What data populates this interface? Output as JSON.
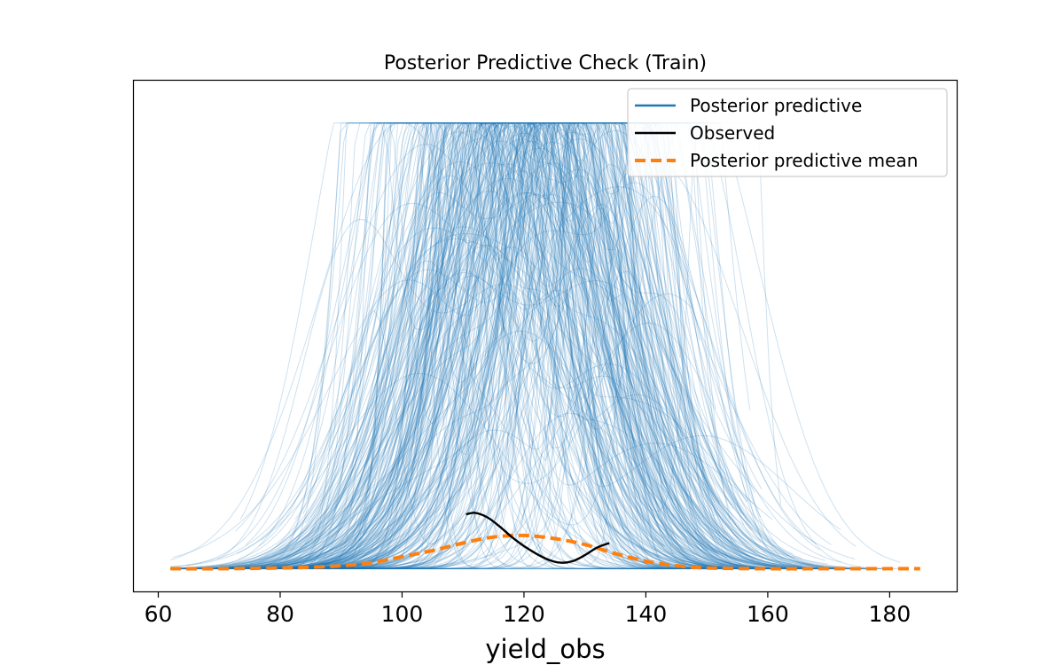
{
  "chart_data": {
    "type": "line",
    "title": "Posterior Predictive Check (Train)",
    "xlabel": "yield_obs",
    "ylabel": "",
    "xlim": [
      56,
      191
    ],
    "ylim": [
      -0.0015,
      0.0323
    ],
    "x_ticks": [
      60,
      80,
      100,
      120,
      140,
      160,
      180
    ],
    "x_tick_labels": [
      "60",
      "80",
      "100",
      "120",
      "140",
      "160",
      "180"
    ],
    "y_ticks_shown": false,
    "grid": false,
    "legend_position": "top-right",
    "colors": {
      "posterior_predictive": "#1f77b4",
      "observed": "#000000",
      "posterior_predictive_mean": "#ff7f0e"
    },
    "series": [
      {
        "name": "Posterior predictive",
        "style": "thin translucent lines, one per posterior draw (hundreds of draws)",
        "approx_x_range": [
          62,
          185
        ],
        "approx_peak_density_range": [
          0.0015,
          0.0295
        ]
      },
      {
        "name": "Observed",
        "x": [
          110.5,
          112,
          114,
          116,
          118,
          120,
          122,
          124,
          126,
          128,
          130,
          132,
          134
        ],
        "y": [
          0.0036,
          0.0037,
          0.0034,
          0.0028,
          0.0021,
          0.0015,
          0.001,
          0.0006,
          0.0004,
          0.0005,
          0.0009,
          0.0014,
          0.0017
        ]
      },
      {
        "name": "Posterior predictive mean",
        "x": [
          62,
          70,
          80,
          85,
          90,
          95,
          100,
          105,
          110,
          115,
          120,
          125,
          130,
          135,
          140,
          145,
          150,
          160,
          170,
          185
        ],
        "y": [
          0.0,
          0.0,
          5e-05,
          0.0001,
          0.0002,
          0.0004,
          0.0008,
          0.0012,
          0.0017,
          0.0021,
          0.0022,
          0.002,
          0.0016,
          0.001,
          0.0005,
          0.0002,
          5e-05,
          0.0,
          0.0,
          0.0
        ]
      }
    ]
  }
}
